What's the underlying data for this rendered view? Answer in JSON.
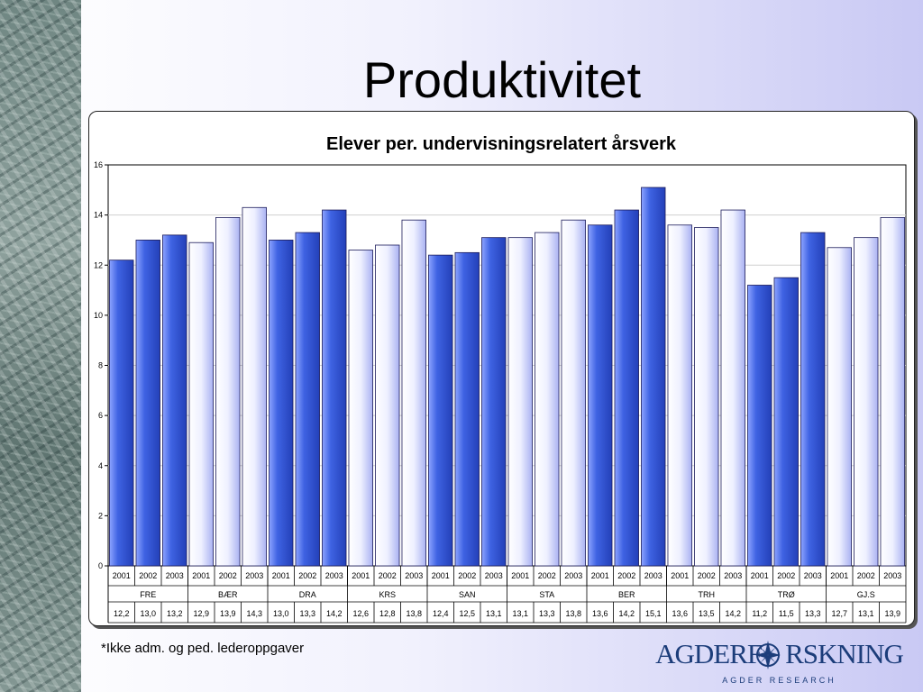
{
  "slide": {
    "title": "Produktivitet",
    "footnote": "*Ikke adm. og ped. lederoppgaver",
    "logo": {
      "name": "AGDERF",
      "name_rest": "RSKNING",
      "tagline": "AGDER RESEARCH",
      "icon": "compass-rose-icon"
    }
  },
  "colors": {
    "dark_bar": "#3f63e3",
    "light_bar": "#eef0ff",
    "bar_stroke": "#1a1a5a",
    "grid": "#cfcfcf"
  },
  "chart_data": {
    "type": "bar",
    "title": "Elever per. undervisningsrelatert årsverk",
    "xlabel": "",
    "ylabel": "",
    "ylim": [
      0,
      16
    ],
    "yticks": [
      "0",
      "2",
      "4",
      "6",
      "8",
      "10",
      "12",
      "14",
      "16"
    ],
    "grid": true,
    "legend": "none",
    "groups": [
      {
        "name": "FRE",
        "shade": "dark",
        "years": [
          "2001",
          "2002",
          "2003"
        ],
        "values": [
          12.2,
          13.0,
          13.2
        ],
        "labels": [
          "12,2",
          "13,0",
          "13,2"
        ]
      },
      {
        "name": "BÆR",
        "shade": "light",
        "years": [
          "2001",
          "2002",
          "2003"
        ],
        "values": [
          12.9,
          13.9,
          14.3
        ],
        "labels": [
          "12,9",
          "13,9",
          "14,3"
        ]
      },
      {
        "name": "DRA",
        "shade": "dark",
        "years": [
          "2001",
          "2002",
          "2003"
        ],
        "values": [
          13.0,
          13.3,
          14.2
        ],
        "labels": [
          "13,0",
          "13,3",
          "14,2"
        ]
      },
      {
        "name": "KRS",
        "shade": "light",
        "years": [
          "2001",
          "2002",
          "2003"
        ],
        "values": [
          12.6,
          12.8,
          13.8
        ],
        "labels": [
          "12,6",
          "12,8",
          "13,8"
        ]
      },
      {
        "name": "SAN",
        "shade": "dark",
        "years": [
          "2001",
          "2002",
          "2003"
        ],
        "values": [
          12.4,
          12.5,
          13.1
        ],
        "labels": [
          "12,4",
          "12,5",
          "13,1"
        ]
      },
      {
        "name": "STA",
        "shade": "light",
        "years": [
          "2001",
          "2002",
          "2003"
        ],
        "values": [
          13.1,
          13.3,
          13.8
        ],
        "labels": [
          "13,1",
          "13,3",
          "13,8"
        ]
      },
      {
        "name": "BER",
        "shade": "dark",
        "years": [
          "2001",
          "2002",
          "2003"
        ],
        "values": [
          13.6,
          14.2,
          15.1
        ],
        "labels": [
          "13,6",
          "14,2",
          "15,1"
        ]
      },
      {
        "name": "TRH",
        "shade": "light",
        "years": [
          "2001",
          "2002",
          "2003"
        ],
        "values": [
          13.6,
          13.5,
          14.2
        ],
        "labels": [
          "13,6",
          "13,5",
          "14,2"
        ]
      },
      {
        "name": "TRØ",
        "shade": "dark",
        "years": [
          "2001",
          "2002",
          "2003"
        ],
        "values": [
          11.2,
          11.5,
          13.3
        ],
        "labels": [
          "11,2",
          "11,5",
          "13,3"
        ]
      },
      {
        "name": "GJ.S",
        "shade": "light",
        "years": [
          "2001",
          "2002",
          "2003"
        ],
        "values": [
          12.7,
          13.1,
          13.9
        ],
        "labels": [
          "12,7",
          "13,1",
          "13,9"
        ]
      }
    ]
  }
}
